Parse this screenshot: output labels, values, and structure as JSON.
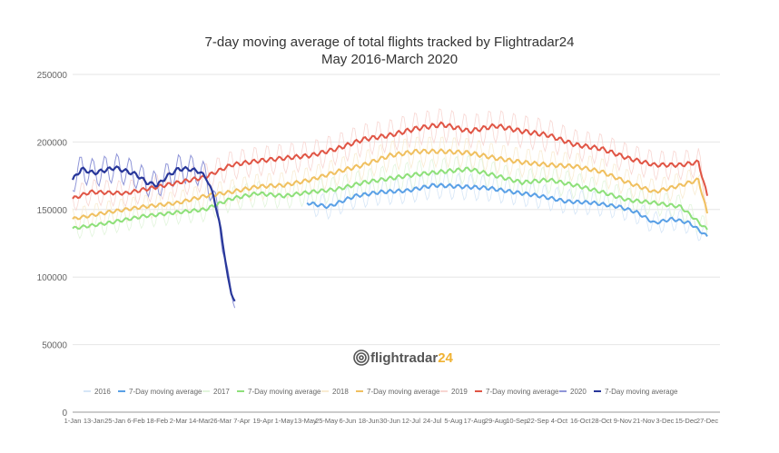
{
  "chart_data": {
    "type": "line",
    "title": "7-day moving average of total flights tracked by Flightradar24",
    "subtitle": "May 2016-March 2020",
    "xlabel": "",
    "ylabel": "",
    "ylim": [
      0,
      250000
    ],
    "yticks": [
      "0",
      "50000",
      "100000",
      "150000",
      "200000",
      "250000"
    ],
    "xticks": [
      "1-Jan",
      "13-Jan",
      "25-Jan",
      "6-Feb",
      "18-Feb",
      "2-Mar",
      "14-Mar",
      "26-Mar",
      "7-Apr",
      "19-Apr",
      "1-May",
      "13-May",
      "25-May",
      "6-Jun",
      "18-Jun",
      "30-Jun",
      "12-Jul",
      "24-Jul",
      "5-Aug",
      "17-Aug",
      "29-Aug",
      "10-Sep",
      "22-Sep",
      "4-Oct",
      "16-Oct",
      "28-Oct",
      "9-Nov",
      "21-Nov",
      "3-Dec",
      "15-Dec",
      "27-Dec"
    ],
    "grid": true,
    "legend_position": "bottom",
    "logo": "flightradar24",
    "series": [
      {
        "name": "2016",
        "ma_label": "7-Day moving average",
        "color": "#5aa0e6",
        "raw_color": "#d6e6f7",
        "points": [
          [
            133,
            155
          ],
          [
            145,
            152
          ],
          [
            160,
            160
          ],
          [
            175,
            163
          ],
          [
            190,
            164
          ],
          [
            205,
            168
          ],
          [
            220,
            167
          ],
          [
            235,
            166
          ],
          [
            250,
            163
          ],
          [
            265,
            160
          ],
          [
            280,
            156
          ],
          [
            295,
            155
          ],
          [
            310,
            152
          ],
          [
            320,
            148
          ],
          [
            330,
            140
          ],
          [
            340,
            143
          ],
          [
            350,
            140
          ],
          [
            360,
            130
          ]
        ]
      },
      {
        "name": "2017",
        "ma_label": "7-Day moving average",
        "color": "#8ee07a",
        "raw_color": "#e2f5dc",
        "points": [
          [
            0,
            136
          ],
          [
            20,
            140
          ],
          [
            40,
            145
          ],
          [
            60,
            148
          ],
          [
            75,
            150
          ],
          [
            90,
            158
          ],
          [
            105,
            162
          ],
          [
            120,
            160
          ],
          [
            135,
            163
          ],
          [
            150,
            165
          ],
          [
            165,
            170
          ],
          [
            180,
            173
          ],
          [
            195,
            176
          ],
          [
            210,
            178
          ],
          [
            225,
            180
          ],
          [
            240,
            175
          ],
          [
            255,
            170
          ],
          [
            270,
            172
          ],
          [
            285,
            168
          ],
          [
            300,
            163
          ],
          [
            315,
            157
          ],
          [
            330,
            155
          ],
          [
            345,
            152
          ],
          [
            360,
            135
          ]
        ]
      },
      {
        "name": "2018",
        "ma_label": "7-Day moving average",
        "color": "#f0c060",
        "raw_color": "#f9ecd2",
        "points": [
          [
            0,
            143
          ],
          [
            20,
            148
          ],
          [
            40,
            152
          ],
          [
            60,
            155
          ],
          [
            75,
            160
          ],
          [
            90,
            163
          ],
          [
            105,
            167
          ],
          [
            120,
            168
          ],
          [
            135,
            172
          ],
          [
            150,
            178
          ],
          [
            165,
            183
          ],
          [
            180,
            190
          ],
          [
            195,
            193
          ],
          [
            210,
            193
          ],
          [
            225,
            192
          ],
          [
            240,
            188
          ],
          [
            255,
            185
          ],
          [
            270,
            183
          ],
          [
            285,
            182
          ],
          [
            300,
            178
          ],
          [
            315,
            170
          ],
          [
            330,
            163
          ],
          [
            345,
            168
          ],
          [
            355,
            172
          ],
          [
            360,
            147
          ]
        ]
      },
      {
        "name": "2019",
        "ma_label": "7-Day moving average",
        "color": "#e05545",
        "raw_color": "#f8d6d2",
        "points": [
          [
            0,
            158
          ],
          [
            10,
            163
          ],
          [
            30,
            162
          ],
          [
            45,
            166
          ],
          [
            60,
            170
          ],
          [
            75,
            174
          ],
          [
            90,
            183
          ],
          [
            105,
            186
          ],
          [
            120,
            188
          ],
          [
            135,
            190
          ],
          [
            150,
            195
          ],
          [
            165,
            202
          ],
          [
            180,
            205
          ],
          [
            195,
            210
          ],
          [
            210,
            213
          ],
          [
            225,
            208
          ],
          [
            240,
            212
          ],
          [
            255,
            208
          ],
          [
            270,
            205
          ],
          [
            285,
            198
          ],
          [
            300,
            195
          ],
          [
            315,
            188
          ],
          [
            330,
            183
          ],
          [
            345,
            183
          ],
          [
            355,
            185
          ],
          [
            360,
            160
          ]
        ]
      },
      {
        "name": "2020",
        "ma_label": "7-Day moving average",
        "color": "#28379a",
        "raw_color": "#8f95d8",
        "points": [
          [
            0,
            172
          ],
          [
            5,
            180
          ],
          [
            12,
            177
          ],
          [
            24,
            181
          ],
          [
            36,
            176
          ],
          [
            42,
            170
          ],
          [
            48,
            168
          ],
          [
            54,
            175
          ],
          [
            60,
            180
          ],
          [
            66,
            180
          ],
          [
            72,
            178
          ],
          [
            76,
            173
          ],
          [
            80,
            160
          ],
          [
            84,
            135
          ],
          [
            86,
            118
          ],
          [
            88,
            100
          ],
          [
            90,
            88
          ],
          [
            92,
            82
          ]
        ]
      }
    ]
  }
}
